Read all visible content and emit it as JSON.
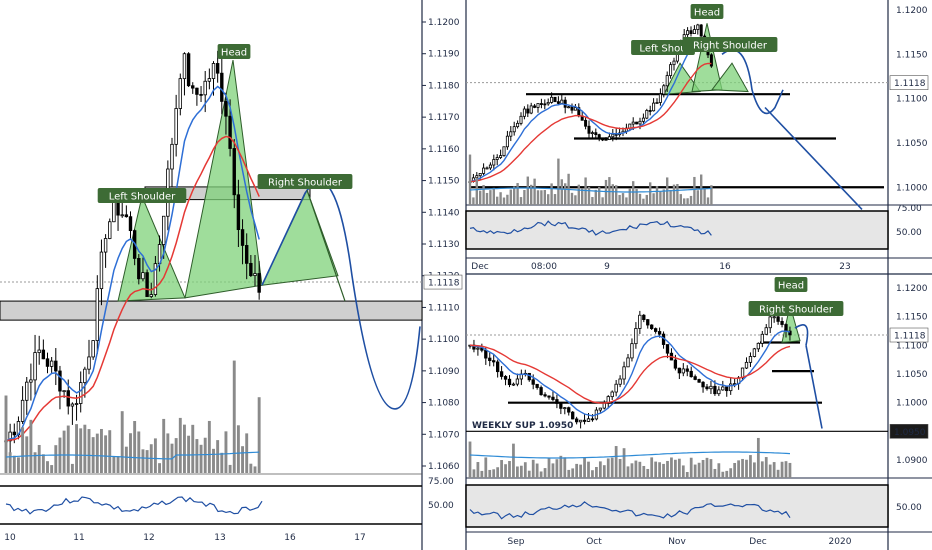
{
  "colors": {
    "bull": "#000000",
    "bear": "#000000",
    "ema_fast": "#2e6fd6",
    "ema_slow": "#e53935",
    "projection": "#1f4fa3",
    "pattern_fill": "#7fd17a",
    "label_bg": "#3d6b35",
    "volume": "#8a8a8a",
    "volume_ma": "#2e8bd6",
    "rsi": "#1f4fa3",
    "level_line": "#000000",
    "axis_text": "#1f2a44",
    "band": "#cfcfcf"
  },
  "chart_data": [
    {
      "type": "candlestick",
      "panel": "intraday",
      "price_axis": {
        "ticks": [
          "1.1200",
          "1.1190",
          "1.1180",
          "1.1170",
          "1.1160",
          "1.1150",
          "1.1140",
          "1.1130",
          "1.1120",
          "1.1110",
          "1.1100",
          "1.1090",
          "1.1080",
          "1.1070",
          "1.1060"
        ],
        "ylim": [
          1.1056,
          1.1204
        ]
      },
      "current_price": "1.1118",
      "x_ticks": [
        "10",
        "11",
        "12",
        "13",
        "16",
        "17"
      ],
      "rsi_ticks": [
        "75.00",
        "50.00"
      ],
      "annotations": [
        "Head",
        "Left Shoulder",
        "Right Shoulder"
      ],
      "pattern": {
        "left_shoulder": 1.1144,
        "head": 1.1187,
        "right_shoulder": 1.1146,
        "neckline": [
          1.1112,
          1.1122
        ],
        "level": 1.111
      },
      "projection_low": 1.108
    },
    {
      "type": "candlestick",
      "panel": "hourly",
      "price_axis": {
        "ticks": [
          "1.1200",
          "1.1150",
          "1.1118",
          "1.1100",
          "1.1050",
          "1.1000"
        ],
        "ylim": [
          1.0965,
          1.1215
        ]
      },
      "current_price": "1.1118",
      "x_ticks": [
        "Dec",
        "08:00",
        "9",
        "16",
        "23"
      ],
      "rsi_ticks": [
        "75.00",
        "50.00"
      ],
      "annotations": [
        "Head",
        "Left Shou",
        "Right Shoulder"
      ],
      "levels": [
        1.1105,
        1.1055,
        1.1
      ]
    },
    {
      "type": "candlestick",
      "panel": "daily",
      "price_axis": {
        "ticks": [
          "1.1200",
          "1.1150",
          "1.1118",
          "1.1100",
          "1.1050",
          "1.1000",
          "1.0950",
          "1.0900"
        ],
        "ylim": [
          1.0875,
          1.1225
        ]
      },
      "current_price": "1.1118",
      "support_label": "1.0950",
      "x_ticks": [
        "Sep",
        "Oct",
        "Nov",
        "Dec",
        "2020"
      ],
      "rsi_ticks": [
        "50.00"
      ],
      "annotations": [
        "Head",
        "Right Shoulder",
        "WEEKLY SUP 1.0950"
      ],
      "levels": [
        1.1105,
        1.1055,
        1.1,
        1.095
      ]
    }
  ]
}
